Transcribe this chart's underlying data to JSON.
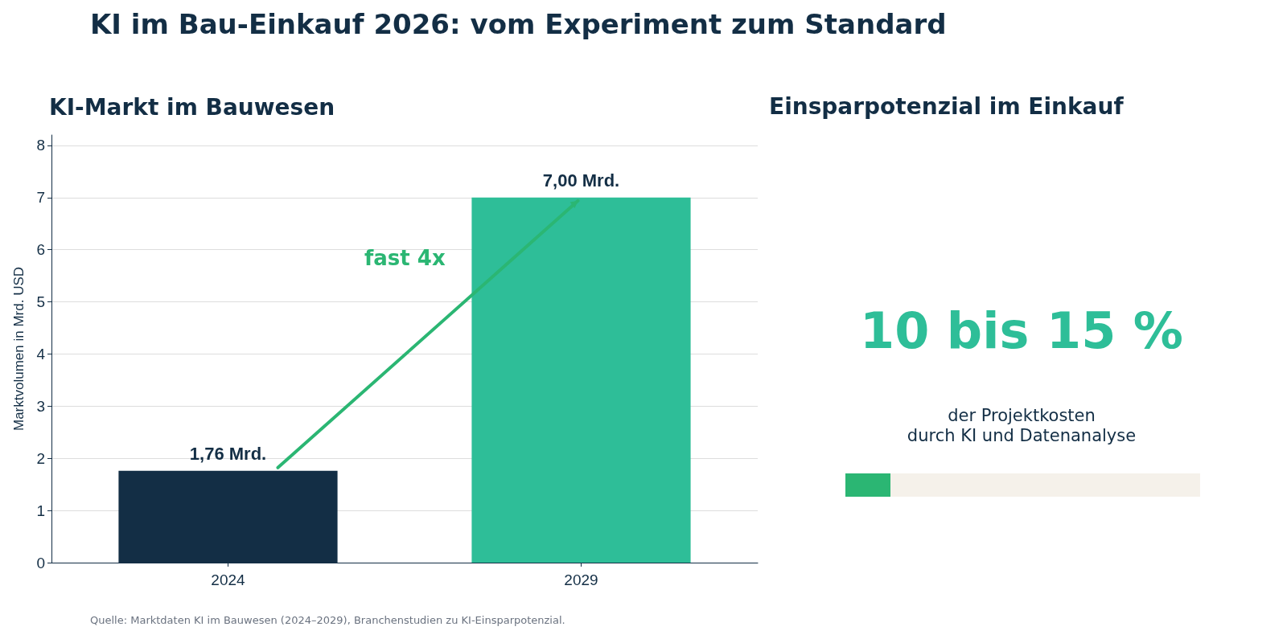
{
  "chart_data": [
    {
      "type": "bar",
      "title": "KI im Bau-Einkauf 2026: vom Experiment zum Standard",
      "subtitle": "KI-Markt im Bauwesen",
      "ylabel": "Marktvolumen in Mrd. USD",
      "categories": [
        "2024",
        "2029"
      ],
      "values": [
        1.76,
        7.0
      ],
      "colors": [
        "#132e45",
        "#2ebe98"
      ],
      "value_labels": [
        "1,76 Mrd.",
        "7,00 Mrd."
      ],
      "ylim": [
        0,
        8.2
      ],
      "yticks": [
        0,
        1,
        2,
        3,
        4,
        5,
        6,
        7,
        8
      ],
      "grid": "y",
      "annotations": [
        "fast 4x",
        "Quelle: Marktdaten KI im Bauwesen (2024–2029), Branchenstudien zu KI-Einsparpotenzial."
      ]
    },
    {
      "type": "other",
      "title": "Einsparpotenzial im Einkauf",
      "annotations": [
        "10 bis 15 %",
        "der Projektkosten\ndurch KI und Datenanalyse"
      ]
    }
  ]
}
